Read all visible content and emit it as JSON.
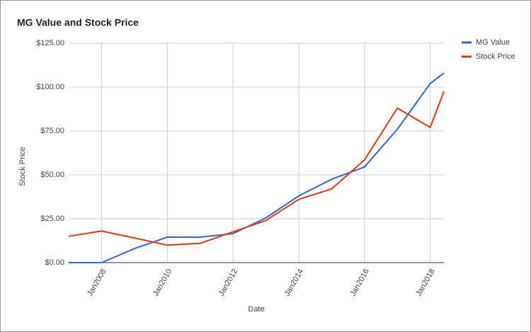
{
  "chart_data": {
    "type": "line",
    "title": "MG Value and Stock Price",
    "x_label": "Date",
    "y_label": "Stock Price",
    "x": [
      "2007-01",
      "2008-01",
      "2009-01",
      "2010-01",
      "2011-01",
      "2012-01",
      "2013-01",
      "2014-01",
      "2015-01",
      "2016-01",
      "2017-01",
      "2018-01",
      "2018-06"
    ],
    "series": [
      {
        "name": "MG Value",
        "color": "#3366cc",
        "values": [
          0,
          0,
          8,
          14.5,
          14.5,
          16.5,
          25.5,
          38,
          47.5,
          54.5,
          76,
          102,
          108
        ]
      },
      {
        "name": "Stock Price",
        "color": "#dc3912",
        "values": [
          15,
          18,
          14,
          10,
          11,
          17.5,
          24,
          36,
          42,
          58.5,
          88,
          77,
          97.5
        ]
      }
    ],
    "xlim": [
      "2007-01",
      "2018-06"
    ],
    "xticks": [
      {
        "value": "2008-01",
        "label": "Jan2008"
      },
      {
        "value": "2010-01",
        "label": "Jan2010"
      },
      {
        "value": "2012-01",
        "label": "Jan2012"
      },
      {
        "value": "2014-01",
        "label": "Jan2014"
      },
      {
        "value": "2016-01",
        "label": "Jan2016"
      },
      {
        "value": "2018-01",
        "label": "Jan2018"
      }
    ],
    "ylim": [
      0,
      125
    ],
    "yticks": [
      {
        "value": 0,
        "label": "$0.00"
      },
      {
        "value": 25,
        "label": "$25.00"
      },
      {
        "value": 50,
        "label": "$50.00"
      },
      {
        "value": 75,
        "label": "$75.00"
      },
      {
        "value": 100,
        "label": "$100.00"
      },
      {
        "value": 125,
        "label": "$125.00"
      }
    ],
    "grid": true,
    "legend": "right"
  }
}
